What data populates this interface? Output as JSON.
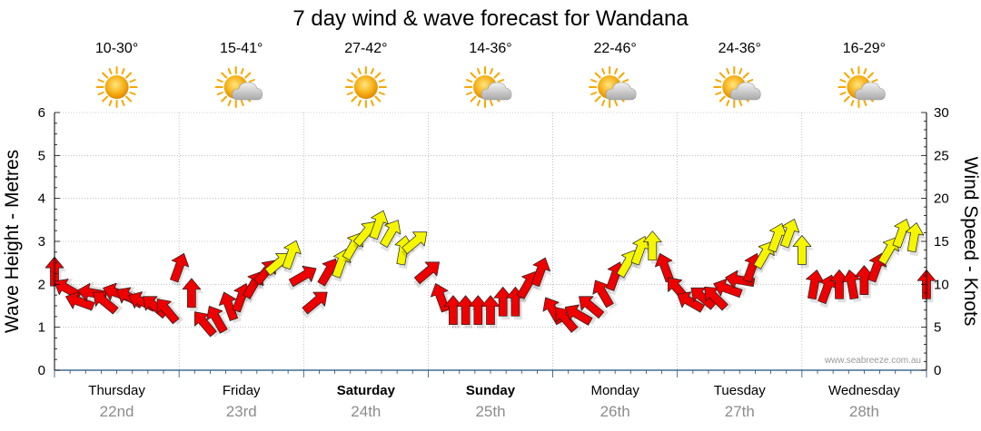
{
  "chart_data": {
    "type": "line",
    "title": "7 day wind & wave forecast for Wandana",
    "ylabel_left": "Wave Height - Metres",
    "ylabel_right": "Wind Speed - Knots",
    "ylim_left": [
      0,
      6
    ],
    "ylim_right": [
      0,
      30
    ],
    "yticks_left": [
      "0",
      "1",
      "2",
      "3",
      "4",
      "5",
      "6"
    ],
    "yticks_right": [
      "0",
      "5",
      "10",
      "15",
      "20",
      "25",
      "30"
    ],
    "watermark": "www.seabreeze.com.au",
    "days": [
      {
        "name": "Thursday",
        "date": "22nd",
        "temp": "10-30°",
        "icon": "sun-icon",
        "bold": false
      },
      {
        "name": "Friday",
        "date": "23rd",
        "temp": "15-41°",
        "icon": "sun-cloud-icon",
        "bold": false
      },
      {
        "name": "Saturday",
        "date": "24th",
        "temp": "27-42°",
        "icon": "sun-icon",
        "bold": true
      },
      {
        "name": "Sunday",
        "date": "25th",
        "temp": "14-36°",
        "icon": "sun-cloud-icon",
        "bold": true
      },
      {
        "name": "Monday",
        "date": "26th",
        "temp": "22-46°",
        "icon": "sun-cloud-icon",
        "bold": false
      },
      {
        "name": "Tuesday",
        "date": "27th",
        "temp": "24-36°",
        "icon": "sun-cloud-icon",
        "bold": false
      },
      {
        "name": "Wednesday",
        "date": "28th",
        "temp": "16-29°",
        "icon": "sun-cloud-icon",
        "bold": false
      }
    ],
    "colors": {
      "strong_wind": "#ee0000",
      "moderate_wind": "#f5f500",
      "grid": "#999999",
      "axis_line": "#1f4e79",
      "date_text": "#8c8c8c"
    },
    "series": [
      {
        "name": "Wind Speed (knots)",
        "day_offset": [
          0.0,
          0.1,
          0.2,
          0.3,
          0.4,
          0.5,
          0.6,
          0.7,
          0.8,
          0.9,
          1.0,
          1.1,
          1.2,
          1.3,
          1.4,
          1.5,
          1.6,
          1.7,
          1.8,
          1.9,
          2.0,
          2.1,
          2.2,
          2.3,
          2.4,
          2.5,
          2.6,
          2.7,
          2.8,
          2.9,
          3.0,
          3.1,
          3.2,
          3.3,
          3.4,
          3.5,
          3.6,
          3.7,
          3.8,
          3.9,
          4.0,
          4.1,
          4.2,
          4.3,
          4.4,
          4.5,
          4.6,
          4.7,
          4.8,
          4.9,
          5.0,
          5.1,
          5.2,
          5.3,
          5.4,
          5.5,
          5.6,
          5.7,
          5.8,
          5.9,
          6.0,
          6.1,
          6.2,
          6.3,
          6.4,
          6.5,
          6.6,
          6.7,
          6.8,
          6.9,
          7.0
        ],
        "values": [
          11.5,
          9.5,
          8,
          9,
          8,
          9,
          8.5,
          8,
          7.5,
          7,
          12,
          9,
          5.5,
          6,
          7.5,
          8.5,
          10,
          11.5,
          12.5,
          13.5,
          11,
          8,
          11.5,
          12.5,
          14.5,
          16,
          17,
          16,
          14,
          15,
          11.5,
          8.5,
          7,
          7,
          7,
          7,
          8,
          8,
          10,
          11.5,
          7,
          6,
          6.5,
          7.5,
          9,
          11,
          12.5,
          14,
          14.5,
          12,
          9.5,
          8,
          8.5,
          8.5,
          9.5,
          10.5,
          12,
          13.5,
          15.5,
          16,
          14,
          10,
          9.5,
          10,
          10,
          10.5,
          12,
          14,
          16,
          15.5,
          10
        ],
        "direction_deg": [
          180,
          120,
          110,
          100,
          130,
          110,
          120,
          115,
          130,
          140,
          200,
          180,
          140,
          150,
          160,
          200,
          210,
          220,
          230,
          200,
          240,
          230,
          210,
          200,
          210,
          220,
          200,
          210,
          190,
          230,
          230,
          160,
          180,
          180,
          180,
          180,
          180,
          180,
          210,
          200,
          150,
          140,
          120,
          130,
          150,
          200,
          210,
          200,
          180,
          160,
          140,
          120,
          130,
          135,
          110,
          100,
          200,
          210,
          200,
          200,
          180,
          190,
          200,
          180,
          170,
          180,
          200,
          210,
          200,
          190,
          180
        ]
      }
    ]
  }
}
